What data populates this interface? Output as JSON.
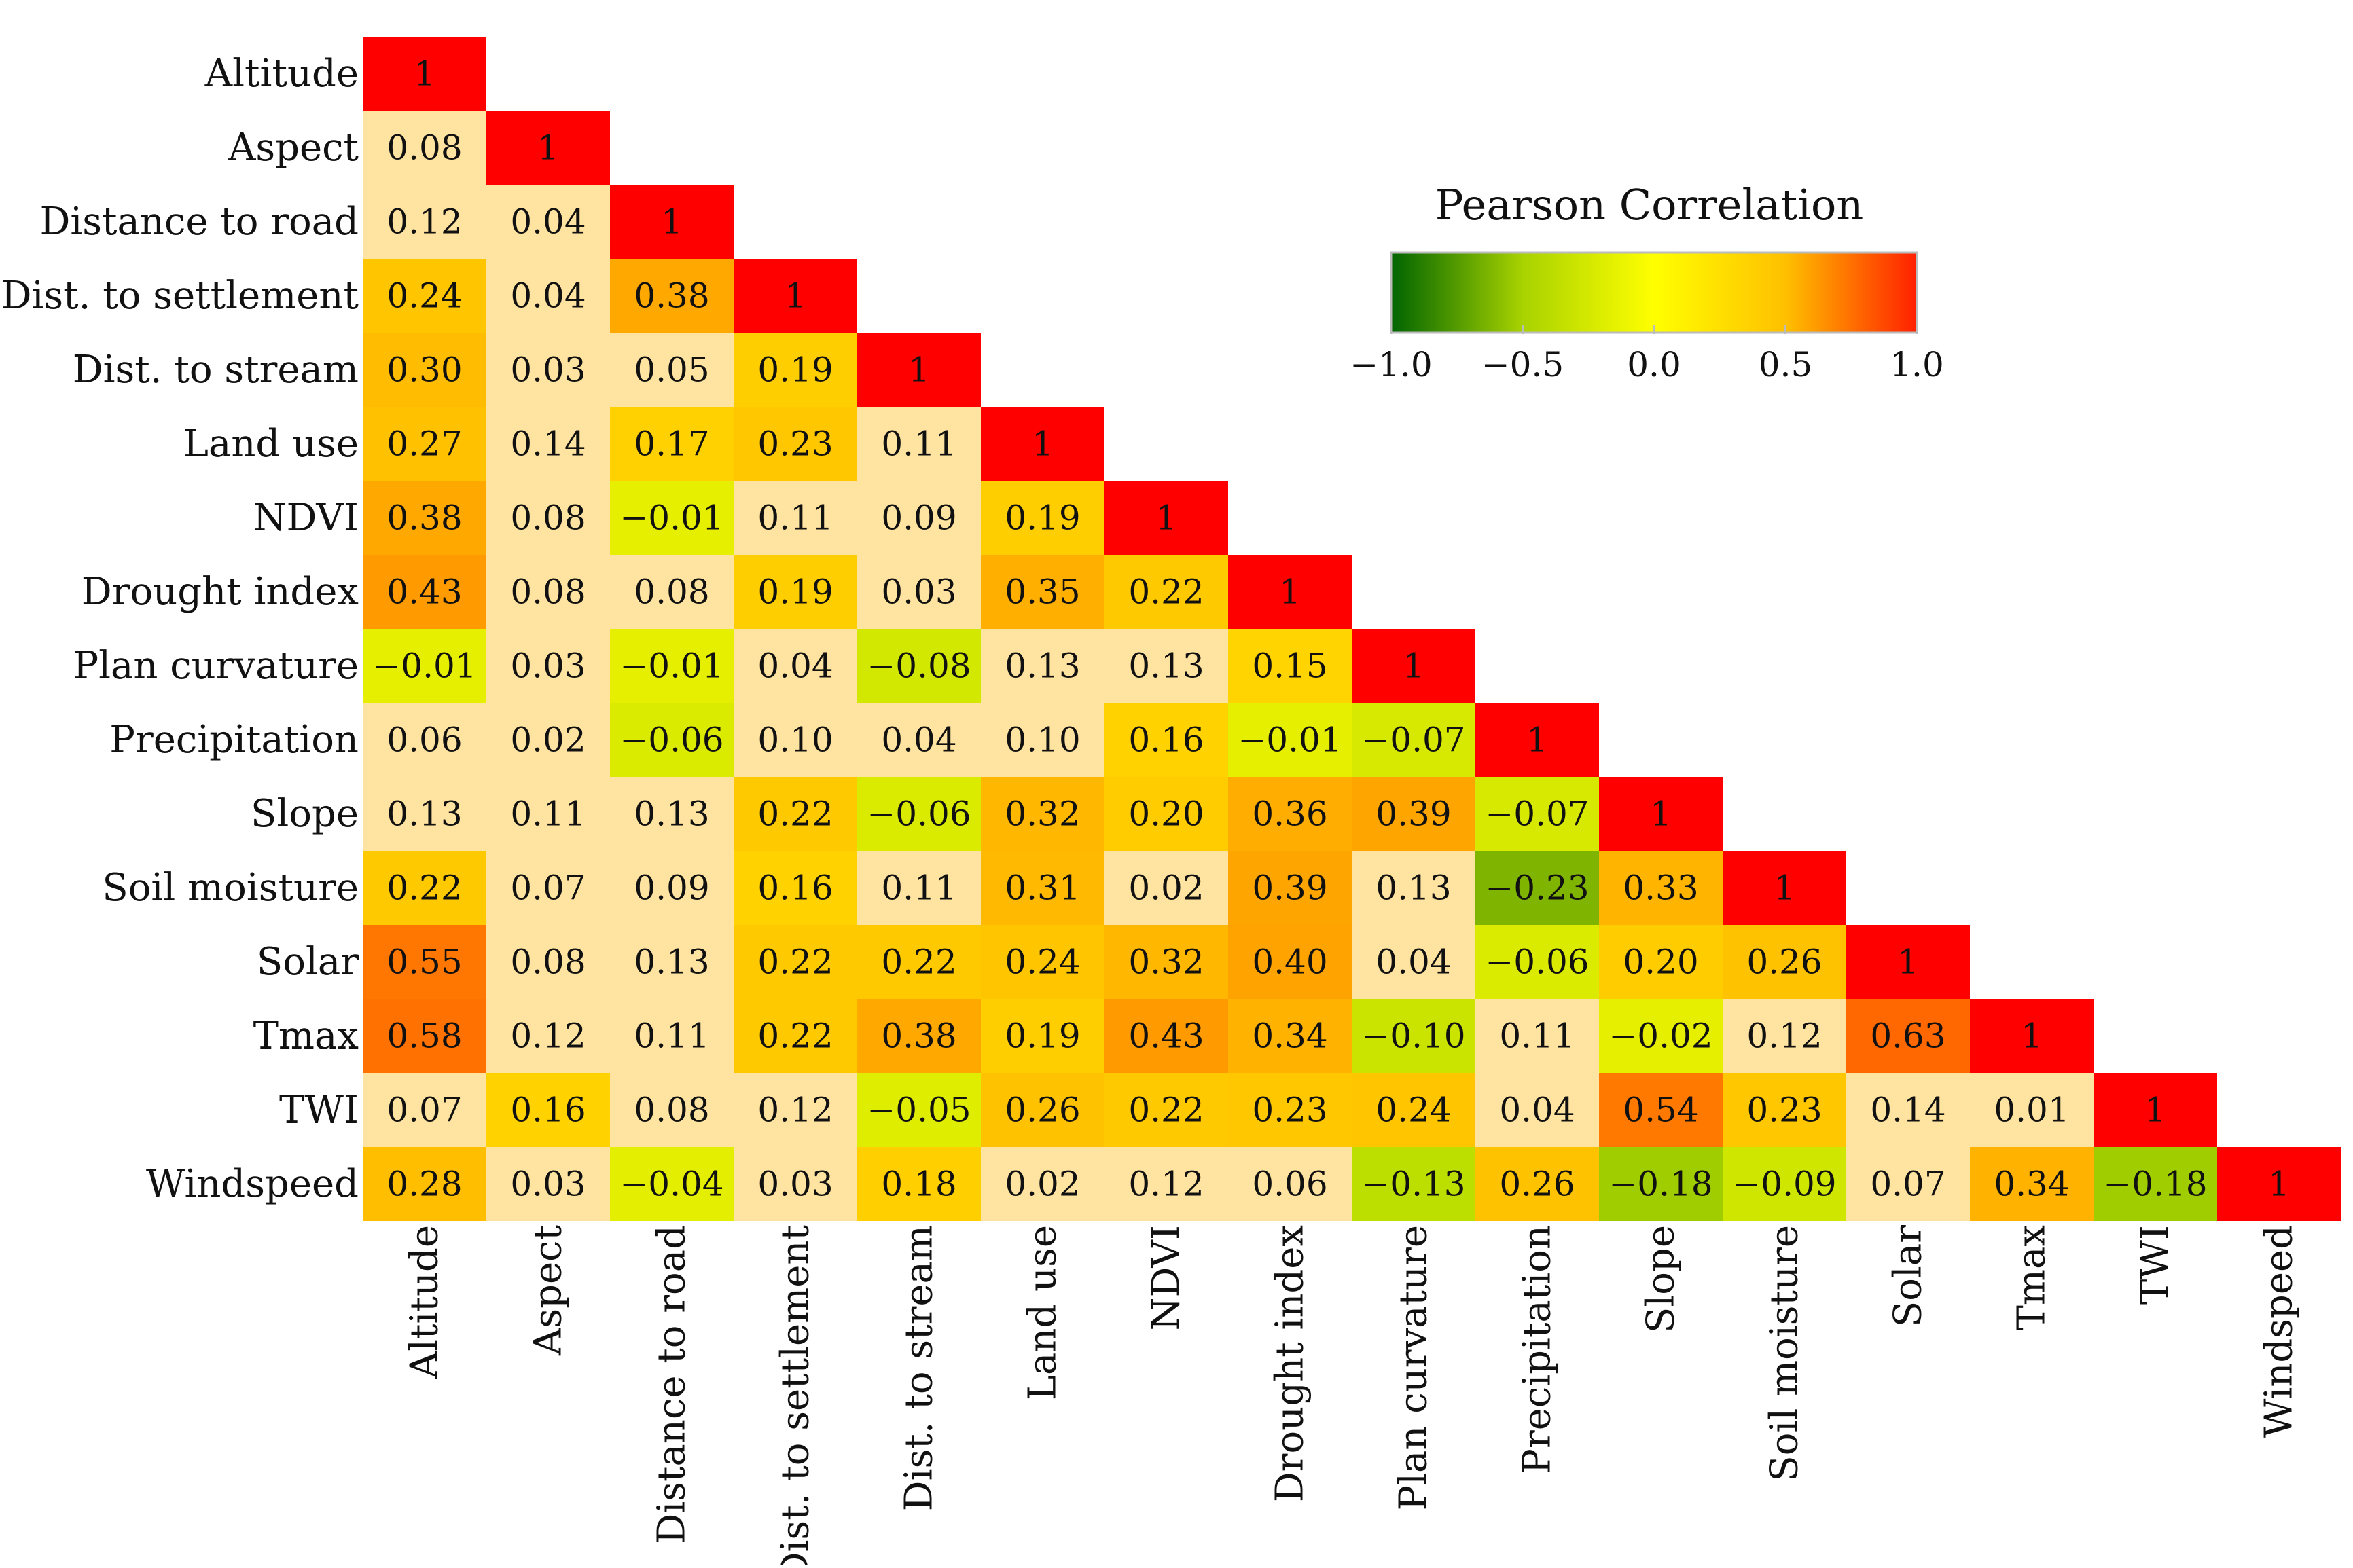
{
  "chart_data": {
    "type": "heatmap",
    "title": "",
    "layout": "lower-triangle",
    "variables": [
      "Altitude",
      "Aspect",
      "Distance to road",
      "Dist. to settlement",
      "Dist. to stream",
      "Land use",
      "NDVI",
      "Drought index",
      "Plan curvature",
      "Precipitation",
      "Slope",
      "Soil moisture",
      "Solar",
      "Tmax",
      "TWI",
      "Windspeed"
    ],
    "matrix": [
      [
        "1"
      ],
      [
        "0.08",
        "1"
      ],
      [
        "0.12",
        "0.04",
        "1"
      ],
      [
        "0.24",
        "0.04",
        "0.38",
        "1"
      ],
      [
        "0.30",
        "0.03",
        "0.05",
        "0.19",
        "1"
      ],
      [
        "0.27",
        "0.14",
        "0.17",
        "0.23",
        "0.11",
        "1"
      ],
      [
        "0.38",
        "0.08",
        "−0.01",
        "0.11",
        "0.09",
        "0.19",
        "1"
      ],
      [
        "0.43",
        "0.08",
        "0.08",
        "0.19",
        "0.03",
        "0.35",
        "0.22",
        "1"
      ],
      [
        "−0.01",
        "0.03",
        "−0.01",
        "0.04",
        "−0.08",
        "0.13",
        "0.13",
        "0.15",
        "1"
      ],
      [
        "0.06",
        "0.02",
        "−0.06",
        "0.10",
        "0.04",
        "0.10",
        "0.16",
        "−0.01",
        "−0.07",
        "1"
      ],
      [
        "0.13",
        "0.11",
        "0.13",
        "0.22",
        "−0.06",
        "0.32",
        "0.20",
        "0.36",
        "0.39",
        "−0.07",
        "1"
      ],
      [
        "0.22",
        "0.07",
        "0.09",
        "0.16",
        "0.11",
        "0.31",
        "0.02",
        "0.39",
        "0.13",
        "−0.23",
        "0.33",
        "1"
      ],
      [
        "0.55",
        "0.08",
        "0.13",
        "0.22",
        "0.22",
        "0.24",
        "0.32",
        "0.40",
        "0.04",
        "−0.06",
        "0.20",
        "0.26",
        "1"
      ],
      [
        "0.58",
        "0.12",
        "0.11",
        "0.22",
        "0.38",
        "0.19",
        "0.43",
        "0.34",
        "−0.10",
        "0.11",
        "−0.02",
        "0.12",
        "0.63",
        "1"
      ],
      [
        "0.07",
        "0.16",
        "0.08",
        "0.12",
        "−0.05",
        "0.26",
        "0.22",
        "0.23",
        "0.24",
        "0.04",
        "0.54",
        "0.23",
        "0.14",
        "0.01",
        "1"
      ],
      [
        "0.28",
        "0.03",
        "−0.04",
        "0.03",
        "0.18",
        "0.02",
        "0.12",
        "0.06",
        "−0.13",
        "0.26",
        "−0.18",
        "−0.09",
        "0.07",
        "0.34",
        "−0.18",
        "1"
      ]
    ],
    "legend": {
      "title": "Pearson Correlation",
      "ticks": [
        "−1.0",
        "−0.5",
        "0.0",
        "0.5",
        "1.0"
      ],
      "range": [
        -1.0,
        1.0
      ],
      "placement": "top-right"
    },
    "colors": {
      "neg_strong": "#006400",
      "neg_mid": "#a8d200",
      "zero": "#ffff00",
      "pos_mid": "#ffc000",
      "pos_strong": "#ff2000",
      "diagonal": "#ff0000",
      "near_zero_cell": "#ffe3a0"
    }
  }
}
